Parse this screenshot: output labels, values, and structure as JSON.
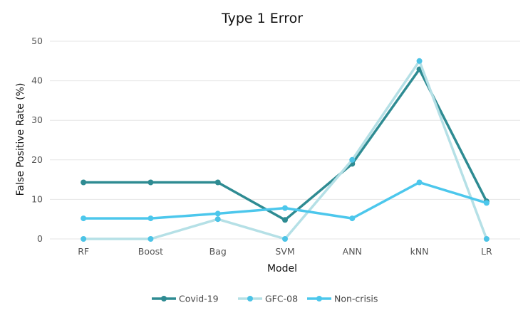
{
  "chart_data": {
    "type": "line",
    "title": "Type 1 Error",
    "xlabel": "Model",
    "ylabel": "False Positive Rate (%)",
    "categories": [
      "RF",
      "Boost",
      "Bag",
      "SVM",
      "ANN",
      "kNN",
      "LR"
    ],
    "ylim": [
      0,
      50
    ],
    "yticks": [
      0,
      10,
      20,
      30,
      40,
      50
    ],
    "grid": "horizontal",
    "legend_position": "bottom",
    "series": [
      {
        "name": "Covid-19",
        "color": "#2e8b92",
        "values": [
          14.3,
          14.3,
          14.3,
          4.8,
          19.0,
          42.9,
          9.5
        ]
      },
      {
        "name": "GFC-08",
        "color": "#b5e0e6",
        "marker_color": "#4cc3e6",
        "values": [
          0,
          0,
          5.0,
          0,
          20.0,
          45.0,
          0
        ]
      },
      {
        "name": "Non-crisis",
        "color": "#4cc7ec",
        "values": [
          5.2,
          5.2,
          6.4,
          7.8,
          5.2,
          14.3,
          9.1
        ]
      }
    ]
  }
}
